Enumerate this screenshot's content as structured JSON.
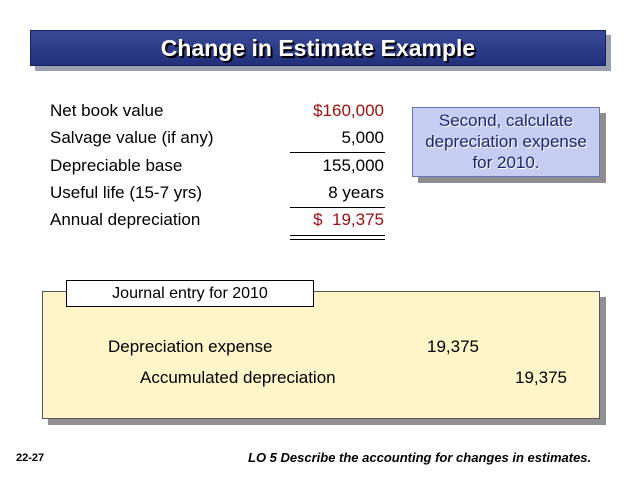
{
  "slide": {
    "title": "Change in Estimate Example",
    "rows": [
      {
        "label": "Net book value",
        "amount": "$160,000"
      },
      {
        "label": "Salvage value (if any)",
        "amount": "5,000"
      },
      {
        "label": "Depreciable base",
        "amount": "155,000"
      },
      {
        "label": "Useful life (15-7 yrs)",
        "amount": "8 years"
      },
      {
        "label": "Annual depreciation",
        "amount": "$  19,375"
      }
    ],
    "callout": {
      "line1": "Second, calculate",
      "line2": "depreciation expense",
      "line3": "for 2010."
    },
    "journal": {
      "tab_label": "Journal entry for 2010",
      "debit_account": "Depreciation expense",
      "debit_amount": "19,375",
      "credit_account": "Accumulated depreciation",
      "credit_amount": "19,375"
    },
    "footer": {
      "slide_number": "22-27",
      "learning_objective": "LO 5  Describe the accounting for changes in estimates."
    }
  },
  "colors": {
    "title_bar": "#2a3888",
    "red_amount": "#a01010",
    "callout_bg": "#c6cdf2",
    "callout_text": "#1a2570",
    "journal_bg": "#fff5c8"
  }
}
